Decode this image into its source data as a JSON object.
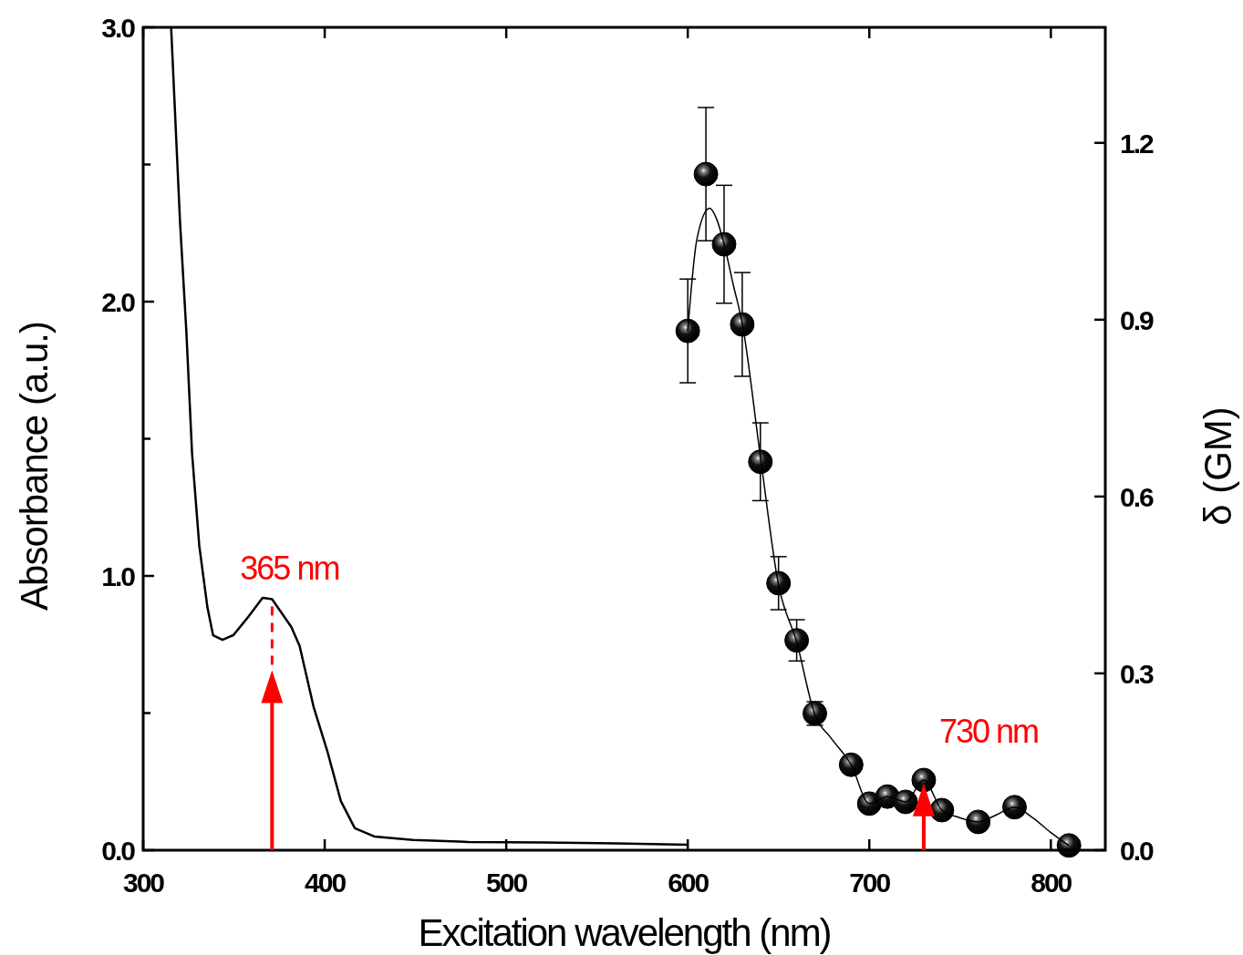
{
  "chart_data": {
    "type": "line",
    "xlabel": "Excitation wavelength (nm)",
    "ylabel": "Absorbance (a.u.)",
    "y2label": "δ (GM)",
    "xlim": [
      300,
      830
    ],
    "xticks": [
      300,
      400,
      500,
      600,
      700,
      800
    ],
    "ylim": [
      0,
      3
    ],
    "yticks": [
      {
        "value": 0,
        "label": "0.0"
      },
      {
        "value": 0.5,
        "label": null
      },
      {
        "value": 1,
        "label": "1.0"
      },
      {
        "value": 1.5,
        "label": null
      },
      {
        "value": 2,
        "label": "2.0"
      },
      {
        "value": 2.5,
        "label": null
      },
      {
        "value": 3,
        "label": "3.0"
      }
    ],
    "y2lim": [
      0,
      1.396
    ],
    "y2ticks": [
      {
        "value": 0,
        "label": "0.0"
      },
      0.3,
      0.6,
      0.9,
      1.2
    ],
    "grid": false,
    "series": [
      {
        "color": "#000000",
        "axis": "y",
        "marker": "none",
        "x": [
          315.4,
          320.3,
          323.8,
          326.9,
          330.9,
          335.4,
          338.5,
          343.7,
          349.7,
          357.2,
          365.8,
          371,
          381.6,
          386.2,
          393.9,
          401.4,
          408.9,
          416.6,
          427.3,
          448.6,
          479,
          520,
          560,
          600
        ],
        "values": [
          3.0,
          2.29,
          1.89,
          1.45,
          1.11,
          0.885,
          0.784,
          0.767,
          0.784,
          0.845,
          0.92,
          0.915,
          0.814,
          0.744,
          0.522,
          0.362,
          0.179,
          0.08,
          0.05,
          0.037,
          0.03,
          0.028,
          0.025,
          0.02
        ]
      },
      {
        "type": "scatter",
        "color": "#000000",
        "axis": "y2",
        "marker": "circle",
        "x": [
          600,
          610,
          620,
          630,
          640,
          650,
          660,
          670,
          690,
          700,
          710,
          720,
          730,
          740,
          760,
          780,
          810
        ],
        "values": [
          0.881,
          1.147,
          1.028,
          0.892,
          0.659,
          0.453,
          0.356,
          0.232,
          0.145,
          0.079,
          0.091,
          0.082,
          0.119,
          0.068,
          0.048,
          0.073,
          0.008
        ],
        "errors": [
          0.088,
          0.113,
          0.1,
          0.088,
          0.066,
          0.045,
          0.035,
          0.02,
          null,
          0.005,
          0.005,
          0.005,
          0.005,
          0.005,
          0.005,
          0.005,
          null
        ]
      },
      {
        "type": "line",
        "color": "#000000",
        "axis": "y2",
        "marker": "none",
        "x": [
          600,
          605,
          612,
          616,
          620,
          625,
          630,
          640,
          650,
          660,
          670,
          679,
          690,
          700,
          710,
          720,
          730,
          740,
          750,
          760,
          770,
          780,
          790,
          800,
          810
        ],
        "values": [
          0.881,
          1.036,
          1.089,
          1.07,
          1.028,
          0.96,
          0.894,
          0.668,
          0.45,
          0.353,
          0.23,
          0.19,
          0.145,
          0.079,
          0.091,
          0.082,
          0.119,
          0.068,
          0.055,
          0.048,
          0.06,
          0.073,
          0.055,
          0.03,
          0.008
        ]
      }
    ],
    "annotations": [
      {
        "text": "365 nm",
        "x": 371,
        "y": 0.915
      },
      {
        "text": "730 nm",
        "x": 730,
        "y": 0.243
      }
    ]
  }
}
